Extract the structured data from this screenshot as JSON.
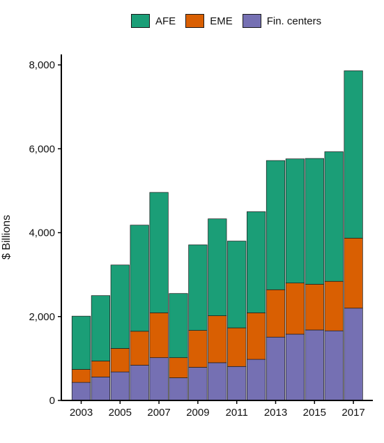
{
  "chart_data": {
    "type": "bar",
    "stacked": true,
    "categories": [
      "2003",
      "2004",
      "2005",
      "2006",
      "2007",
      "2008",
      "2009",
      "2010",
      "2011",
      "2012",
      "2013",
      "2014",
      "2015",
      "2016",
      "2017"
    ],
    "x_tick_labels": [
      "2003",
      "2005",
      "2007",
      "2009",
      "2011",
      "2013",
      "2015",
      "2017"
    ],
    "ylabel": "$ Billions",
    "xlabel": "",
    "ylim": [
      0,
      8250
    ],
    "y_ticks": [
      0,
      2000,
      4000,
      6000,
      8000
    ],
    "y_tick_labels": [
      "0",
      "2,000",
      "4,000",
      "6,000",
      "8,000"
    ],
    "legend_position": "top",
    "grid": false,
    "series": [
      {
        "name": "Fin. centers",
        "color": "#7570b3",
        "values": [
          430,
          560,
          680,
          840,
          1020,
          540,
          790,
          900,
          810,
          980,
          1510,
          1580,
          1680,
          1660,
          2200
        ]
      },
      {
        "name": "EME",
        "color": "#d95f02",
        "values": [
          310,
          380,
          560,
          810,
          1070,
          480,
          880,
          1120,
          920,
          1110,
          1130,
          1220,
          1090,
          1180,
          1670
        ]
      },
      {
        "name": "AFE",
        "color": "#1b9e77",
        "values": [
          1270,
          1560,
          1990,
          2530,
          2870,
          1530,
          2040,
          2310,
          2070,
          2410,
          3080,
          2960,
          3000,
          3090,
          3990
        ]
      }
    ]
  },
  "legend": {
    "items": [
      {
        "label": "AFE",
        "color": "#1b9e77"
      },
      {
        "label": "EME",
        "color": "#d95f02"
      },
      {
        "label": "Fin. centers",
        "color": "#7570b3"
      }
    ]
  }
}
